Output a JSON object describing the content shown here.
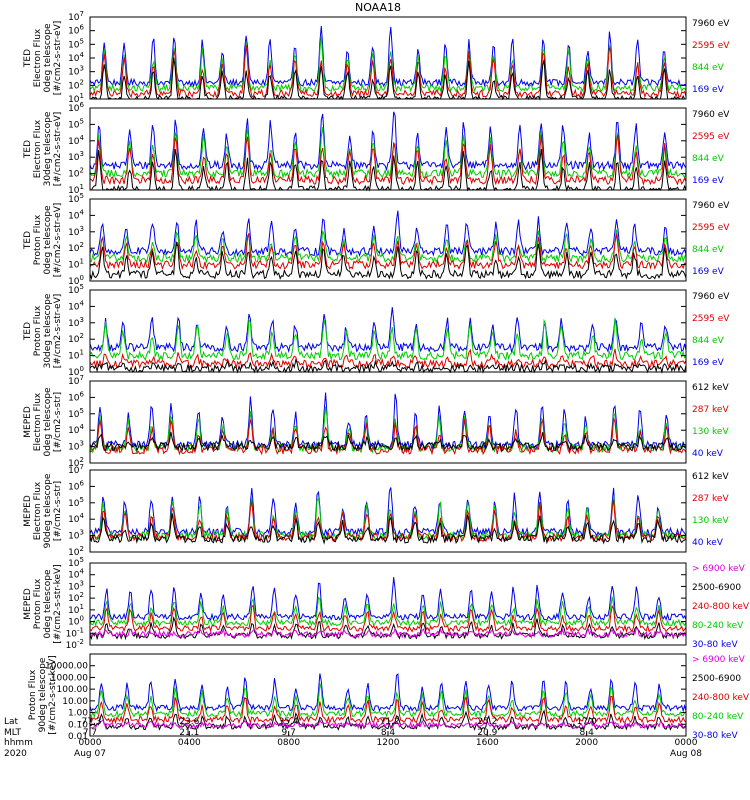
{
  "chart_data": {
    "type": "line",
    "title": "NOAA18",
    "x_range_hours": [
      0,
      24
    ],
    "panels": [
      {
        "ylabel": [
          "TED",
          "Electron Flux",
          "0deg telescope",
          "[#/cm2-s-str-eV]"
        ],
        "yexp_range": [
          1,
          7
        ],
        "tick_exponents": [
          1,
          2,
          3,
          4,
          5,
          6,
          7
        ],
        "legend": [
          {
            "label": "7960 eV",
            "color": "#000000"
          },
          {
            "label": "2595 eV",
            "color": "#dd0000"
          },
          {
            "label": "844 eV",
            "color": "#00cc00"
          },
          {
            "label": "169 eV",
            "color": "#0000ee"
          }
        ],
        "series": [
          {
            "name": "169 eV",
            "color": "#0000ee",
            "baseline_exp": 2.2,
            "peak_exp": 6.5
          },
          {
            "name": "844 eV",
            "color": "#00cc00",
            "baseline_exp": 1.8,
            "peak_exp": 5.5
          },
          {
            "name": "2595 eV",
            "color": "#dd0000",
            "baseline_exp": 1.4,
            "peak_exp": 5.0
          },
          {
            "name": "7960 eV",
            "color": "#000000",
            "baseline_exp": 1.0,
            "peak_exp": 4.0
          }
        ]
      },
      {
        "ylabel": [
          "TED",
          "Electron Flux",
          "30deg telescope",
          "[#/cm2-s-str-eV]"
        ],
        "yexp_range": [
          1,
          6
        ],
        "tick_exponents": [
          1,
          2,
          3,
          4,
          5,
          6
        ],
        "legend": [
          {
            "label": "7960 eV",
            "color": "#000000"
          },
          {
            "label": "2595 eV",
            "color": "#dd0000"
          },
          {
            "label": "844 eV",
            "color": "#00cc00"
          },
          {
            "label": "169 eV",
            "color": "#0000ee"
          }
        ],
        "series": [
          {
            "name": "169 eV",
            "color": "#0000ee",
            "baseline_exp": 2.5,
            "peak_exp": 6.0
          },
          {
            "name": "844 eV",
            "color": "#00cc00",
            "baseline_exp": 2.0,
            "peak_exp": 5.0
          },
          {
            "name": "2595 eV",
            "color": "#dd0000",
            "baseline_exp": 1.6,
            "peak_exp": 4.5
          },
          {
            "name": "7960 eV",
            "color": "#000000",
            "baseline_exp": 1.0,
            "peak_exp": 3.5
          }
        ]
      },
      {
        "ylabel": [
          "TED",
          "Proton Flux",
          "0deg telescope",
          "[#/cm2-s-str-eV]"
        ],
        "yexp_range": [
          0,
          5
        ],
        "tick_exponents": [
          0,
          1,
          2,
          3,
          4,
          5
        ],
        "legend": [
          {
            "label": "7960 eV",
            "color": "#000000"
          },
          {
            "label": "2595 eV",
            "color": "#dd0000"
          },
          {
            "label": "844 eV",
            "color": "#00cc00"
          },
          {
            "label": "169 eV",
            "color": "#0000ee"
          }
        ],
        "series": [
          {
            "name": "169 eV",
            "color": "#0000ee",
            "baseline_exp": 1.8,
            "peak_exp": 4.3
          },
          {
            "name": "844 eV",
            "color": "#00cc00",
            "baseline_exp": 1.4,
            "peak_exp": 3.2
          },
          {
            "name": "2595 eV",
            "color": "#dd0000",
            "baseline_exp": 1.0,
            "peak_exp": 2.8
          },
          {
            "name": "7960 eV",
            "color": "#000000",
            "baseline_exp": 0.4,
            "peak_exp": 2.4
          }
        ]
      },
      {
        "ylabel": [
          "TED",
          "Proton Flux",
          "30deg telescope",
          "[#/cm2-s-str-eV]"
        ],
        "yexp_range": [
          0,
          5
        ],
        "tick_exponents": [
          0,
          1,
          2,
          3,
          4,
          5
        ],
        "legend": [
          {
            "label": "7960 eV",
            "color": "#000000"
          },
          {
            "label": "2595 eV",
            "color": "#dd0000"
          },
          {
            "label": "844 eV",
            "color": "#00cc00"
          },
          {
            "label": "169 eV",
            "color": "#0000ee"
          }
        ],
        "series": [
          {
            "name": "169 eV",
            "color": "#0000ee",
            "baseline_exp": 1.5,
            "peak_exp": 3.8
          },
          {
            "name": "844 eV",
            "color": "#00cc00",
            "baseline_exp": 1.0,
            "peak_exp": 3.4
          },
          {
            "name": "2595 eV",
            "color": "#dd0000",
            "baseline_exp": 0.5,
            "peak_exp": 1.2
          },
          {
            "name": "7960 eV",
            "color": "#000000",
            "baseline_exp": 0.2,
            "peak_exp": 0.6
          }
        ]
      },
      {
        "ylabel": [
          "MEPED",
          "Electron Flux",
          "0deg telescope",
          "[#/cm2-s-str]"
        ],
        "yexp_range": [
          2,
          7
        ],
        "tick_exponents": [
          2,
          3,
          4,
          5,
          6,
          7
        ],
        "legend": [
          {
            "label": "612 keV",
            "color": "#000000"
          },
          {
            "label": "287 keV",
            "color": "#dd0000"
          },
          {
            "label": "130 keV",
            "color": "#00cc00"
          },
          {
            "label": "40 keV",
            "color": "#0000ee"
          }
        ],
        "series": [
          {
            "name": "40 keV",
            "color": "#0000ee",
            "baseline_exp": 3.1,
            "peak_exp": 6.3
          },
          {
            "name": "130 keV",
            "color": "#00cc00",
            "baseline_exp": 2.9,
            "peak_exp": 5.3
          },
          {
            "name": "287 keV",
            "color": "#dd0000",
            "baseline_exp": 2.8,
            "peak_exp": 4.8
          },
          {
            "name": "612 keV",
            "color": "#000000",
            "baseline_exp": 3.0,
            "peak_exp": 3.8
          }
        ]
      },
      {
        "ylabel": [
          "MEPED",
          "Electron Flux",
          "90deg telescope",
          "[#/cm2-s-str]"
        ],
        "yexp_range": [
          2,
          7
        ],
        "tick_exponents": [
          2,
          3,
          4,
          5,
          6,
          7
        ],
        "legend": [
          {
            "label": "612 keV",
            "color": "#000000"
          },
          {
            "label": "287 keV",
            "color": "#dd0000"
          },
          {
            "label": "130 keV",
            "color": "#00cc00"
          },
          {
            "label": "40 keV",
            "color": "#0000ee"
          }
        ],
        "series": [
          {
            "name": "40 keV",
            "color": "#0000ee",
            "baseline_exp": 3.2,
            "peak_exp": 6.2
          },
          {
            "name": "130 keV",
            "color": "#00cc00",
            "baseline_exp": 3.0,
            "peak_exp": 5.6
          },
          {
            "name": "287 keV",
            "color": "#dd0000",
            "baseline_exp": 2.9,
            "peak_exp": 5.0
          },
          {
            "name": "612 keV",
            "color": "#000000",
            "baseline_exp": 2.8,
            "peak_exp": 4.2
          }
        ]
      },
      {
        "ylabel": [
          "MEPED",
          "Proton Flux",
          "0deg telescope",
          "[#/cm2-s-str-keV]"
        ],
        "yexp_range": [
          -2,
          5
        ],
        "tick_exponents": [
          -2,
          -1,
          0,
          1,
          2,
          3,
          4,
          5
        ],
        "legend": [
          {
            "label": "> 6900 keV",
            "color": "#dd00dd"
          },
          {
            "label": "2500-6900",
            "color": "#000000"
          },
          {
            "label": "240-800 keV",
            "color": "#dd0000"
          },
          {
            "label": "80-240 keV",
            "color": "#00cc00"
          },
          {
            "label": "30-80 keV",
            "color": "#0000ee"
          }
        ],
        "series": [
          {
            "name": "30-80 keV",
            "color": "#0000ee",
            "baseline_exp": 0.4,
            "peak_exp": 3.7
          },
          {
            "name": "80-240 keV",
            "color": "#00cc00",
            "baseline_exp": -0.1,
            "peak_exp": 2.2
          },
          {
            "name": "240-800 keV",
            "color": "#dd0000",
            "baseline_exp": -0.6,
            "peak_exp": 1.4
          },
          {
            "name": "2500-6900",
            "color": "#000000",
            "baseline_exp": -1.2,
            "peak_exp": 0.2
          },
          {
            "name": "> 6900 keV",
            "color": "#dd00dd",
            "baseline_exp": -1.1,
            "peak_exp": -0.7
          }
        ]
      },
      {
        "ylabel": [
          "Proton Flux",
          "90deg telescope",
          "[#/cm2-s-str-keV]"
        ],
        "yexp_range": [
          -2,
          5
        ],
        "tick_labels": [
          "0.01",
          "0.10",
          "1.00",
          "10.00",
          "100.00",
          "1000.00",
          "10000.00"
        ],
        "tick_exponents": [
          -2,
          -1,
          0,
          1,
          2,
          3,
          4
        ],
        "legend": [
          {
            "label": "> 6900 keV",
            "color": "#dd00dd"
          },
          {
            "label": "2500-6900",
            "color": "#000000"
          },
          {
            "label": "240-800 keV",
            "color": "#dd0000"
          },
          {
            "label": "80-240 keV",
            "color": "#00cc00"
          },
          {
            "label": "30-80 keV",
            "color": "#0000ee"
          }
        ],
        "series": [
          {
            "name": "30-80 keV",
            "color": "#0000ee",
            "baseline_exp": 0.4,
            "peak_exp": 3.6
          },
          {
            "name": "80-240 keV",
            "color": "#00cc00",
            "baseline_exp": -0.1,
            "peak_exp": 2.4
          },
          {
            "name": "240-800 keV",
            "color": "#dd0000",
            "baseline_exp": -0.6,
            "peak_exp": 1.5
          },
          {
            "name": "2500-6900",
            "color": "#000000",
            "baseline_exp": -1.2,
            "peak_exp": 0.1
          },
          {
            "name": "> 6900 keV",
            "color": "#dd00dd",
            "baseline_exp": -1.1,
            "peak_exp": -0.8
          }
        ]
      }
    ],
    "bottom_axis": {
      "row_labels": [
        "Lat",
        "MLT",
        "hhmm",
        "2020"
      ],
      "ticks": [
        {
          "hour": 0,
          "lat": "-77.3",
          "mlt": "7.7",
          "hhmm": "0000",
          "date": "Aug 07"
        },
        {
          "hour": 4,
          "lat": "23.6",
          "mlt": "21.1",
          "hhmm": "0400",
          "date": ""
        },
        {
          "hour": 8,
          "lat": "35.4",
          "mlt": "9.7",
          "hhmm": "0800",
          "date": ""
        },
        {
          "hour": 12,
          "lat": "-71.2",
          "mlt": "8.4",
          "hhmm": "1200",
          "date": ""
        },
        {
          "hour": 16,
          "lat": "25.2",
          "mlt": "20.9",
          "hhmm": "1600",
          "date": ""
        },
        {
          "hour": 20,
          "lat": "17.0",
          "mlt": "8.4",
          "hhmm": "2000",
          "date": ""
        },
        {
          "hour": 24,
          "lat": "",
          "mlt": "",
          "hhmm": "0000",
          "date": "Aug 08"
        }
      ]
    }
  }
}
